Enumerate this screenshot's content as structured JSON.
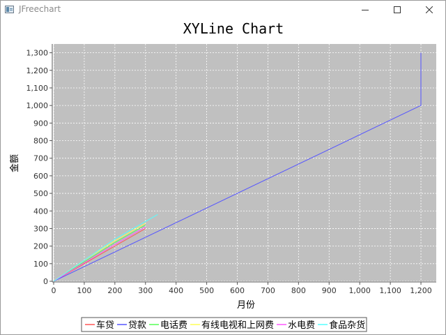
{
  "window": {
    "title": "JFreechart",
    "icons": {
      "app": "java-app-icon",
      "minimize": "minimize-icon",
      "maximize": "maximize-icon",
      "close": "close-icon"
    }
  },
  "colors": {
    "plot_background": "#c0c0c0",
    "gridline": "#ffffff"
  },
  "chart_data": {
    "type": "line",
    "title": "XYLine Chart",
    "xlabel": "月份",
    "ylabel": "金额",
    "xlim": [
      0,
      1250
    ],
    "ylim": [
      0,
      1350
    ],
    "xticks": [
      0,
      100,
      200,
      300,
      400,
      500,
      600,
      700,
      800,
      900,
      1000,
      1100,
      1200
    ],
    "yticks": [
      0,
      100,
      200,
      300,
      400,
      500,
      600,
      700,
      800,
      900,
      1000,
      1100,
      1200,
      1300
    ],
    "xtick_labels": [
      "0",
      "100",
      "200",
      "300",
      "400",
      "500",
      "600",
      "700",
      "800",
      "900",
      "1,000",
      "1,100",
      "1,200"
    ],
    "ytick_labels": [
      "0",
      "100",
      "200",
      "300",
      "400",
      "500",
      "600",
      "700",
      "800",
      "900",
      "1,000",
      "1,100",
      "1,200",
      "1,300"
    ],
    "grid": true,
    "legend_position": "bottom",
    "series": [
      {
        "name": "车贷",
        "color": "#ff5555",
        "points": [
          [
            0,
            0
          ],
          [
            100,
            100
          ],
          [
            200,
            200
          ],
          [
            300,
            300
          ]
        ]
      },
      {
        "name": "贷款",
        "color": "#5555ff",
        "points": [
          [
            0,
            0
          ],
          [
            1200,
            1000
          ],
          [
            1200,
            1300
          ]
        ]
      },
      {
        "name": "电话费",
        "color": "#55ff55",
        "points": [
          [
            0,
            0
          ],
          [
            100,
            110
          ],
          [
            200,
            220
          ],
          [
            300,
            320
          ]
        ]
      },
      {
        "name": "有线电视和上网费",
        "color": "#ffff55",
        "points": [
          [
            0,
            0
          ],
          [
            100,
            120
          ],
          [
            200,
            230
          ],
          [
            300,
            330
          ]
        ]
      },
      {
        "name": "水电费",
        "color": "#ff55ff",
        "points": [
          [
            0,
            0
          ],
          [
            100,
            105
          ],
          [
            200,
            210
          ],
          [
            300,
            310
          ]
        ]
      },
      {
        "name": "食品杂货",
        "color": "#55ffff",
        "points": [
          [
            0,
            0
          ],
          [
            100,
            120
          ],
          [
            200,
            240
          ],
          [
            340,
            380
          ]
        ]
      }
    ]
  }
}
